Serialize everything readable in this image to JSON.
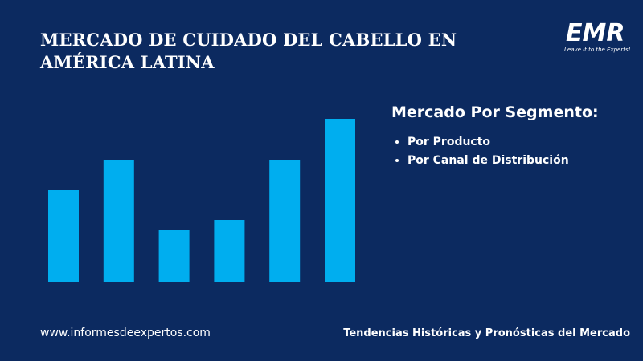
{
  "header": {
    "title": "MERCADO DE CUIDADO DEL CABELLO EN AMÉRICA LATINA",
    "logo": "EMR",
    "tagline": "Leave it to the Experts!"
  },
  "chart_data": {
    "type": "bar",
    "values": [
      114,
      152,
      64,
      77,
      152,
      203
    ],
    "color": "#00aeef"
  },
  "segment": {
    "heading": "Mercado Por Segmento:",
    "items": [
      "Por Producto",
      "Por Canal de Distribución"
    ]
  },
  "footer": {
    "website": "www.informesdeexpertos.com",
    "tagline": "Tendencias Históricas y Pronósticas del Mercado"
  }
}
